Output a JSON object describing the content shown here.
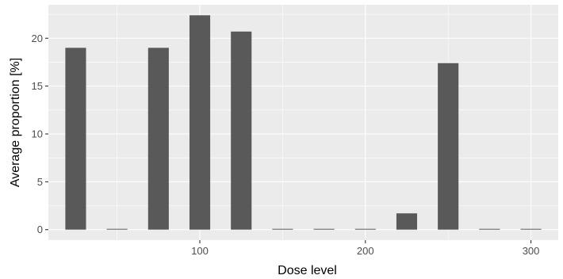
{
  "chart_data": {
    "type": "bar",
    "title": "",
    "xlabel": "Dose level",
    "ylabel": "Average proportion [%]",
    "x": [
      25,
      50,
      75,
      100,
      125,
      150,
      175,
      200,
      225,
      250,
      275,
      300
    ],
    "values": [
      19.0,
      0.05,
      19.0,
      22.4,
      20.7,
      0.05,
      0.05,
      0.05,
      1.7,
      17.4,
      0.05,
      0.05
    ],
    "xlim": [
      8.5,
      316.5
    ],
    "ylim": [
      -1.1,
      23.5
    ],
    "xticks": [
      100,
      200,
      300
    ],
    "yticks": [
      0,
      5,
      10,
      15,
      20
    ],
    "bar_width": 12.5,
    "grid": true,
    "colors": {
      "panel_background": "#EBEBEB",
      "grid_major": "#FFFFFF",
      "bar_fill": "#595959",
      "tick_text": "#4D4D4D",
      "tick_mark": "#333333"
    }
  }
}
